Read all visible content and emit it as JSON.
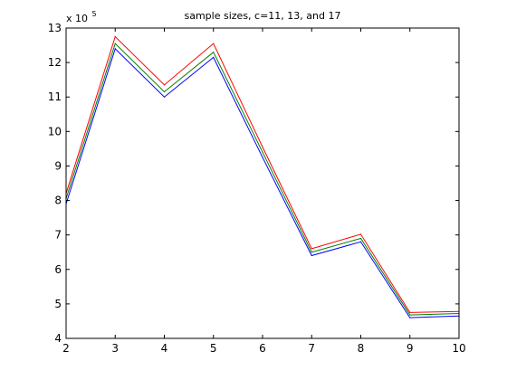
{
  "chart_data": {
    "type": "line",
    "title": "sample sizes, c=11, 13, and 17",
    "xlabel": "",
    "ylabel": "",
    "xlim": [
      2,
      10
    ],
    "ylim": [
      4,
      13
    ],
    "x_ticks": [
      2,
      3,
      4,
      5,
      6,
      7,
      8,
      9,
      10
    ],
    "y_ticks": [
      4,
      5,
      6,
      7,
      8,
      9,
      10,
      11,
      12,
      13
    ],
    "y_multiplier_base": "x 10",
    "y_multiplier_exponent": "5",
    "grid": false,
    "legend": "none",
    "x": [
      2,
      3,
      4,
      5,
      6,
      7,
      8,
      9,
      10
    ],
    "series": [
      {
        "color": "#0000ff",
        "values": [
          7.9,
          12.4,
          11.0,
          12.15,
          9.25,
          6.4,
          6.8,
          4.6,
          4.65
        ]
      },
      {
        "color": "#008000",
        "values": [
          8.05,
          12.55,
          11.15,
          12.3,
          9.4,
          6.5,
          6.9,
          4.68,
          4.72
        ]
      },
      {
        "color": "#ff0000",
        "values": [
          8.2,
          12.75,
          11.35,
          12.55,
          9.55,
          6.6,
          7.02,
          4.75,
          4.78
        ]
      }
    ]
  }
}
